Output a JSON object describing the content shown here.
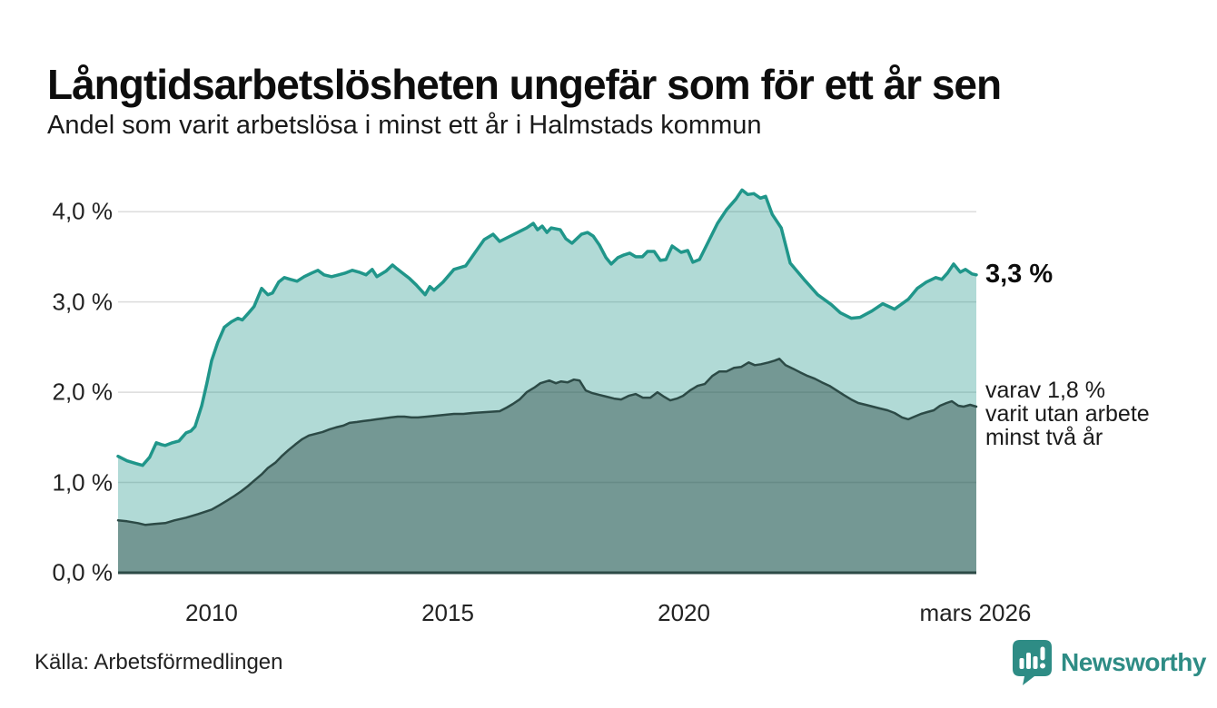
{
  "branding": {
    "name": "Newsworthy"
  },
  "colors": {
    "accent_teal": "#20968a",
    "fill_light": "rgba(32,150,138,0.35)",
    "dark_slate": "#2c4a46",
    "fill_dark": "rgba(44,74,70,0.46)",
    "gridline": "#dcdcdc",
    "baseline": "#2c4a46",
    "brand_teal": "#2e8c85",
    "text": "#1a1a1a"
  },
  "chart_data": {
    "type": "area",
    "title": "Långtidsarbetslösheten ungefär som för ett år sen",
    "subtitle": "Andel som varit arbetslösa i minst ett år i Halmstads kommun",
    "source": "Källa: Arbetsförmedlingen",
    "unit": "%",
    "legend": "none",
    "grid": "horizontal",
    "x_axis": {
      "range": [
        2008.02,
        2026.19
      ],
      "ticks": [
        {
          "label": "2010",
          "year": 2010
        },
        {
          "label": "2015",
          "year": 2015
        },
        {
          "label": "2020",
          "year": 2020
        },
        {
          "label": "mars 2026",
          "year": 2026.17
        }
      ]
    },
    "y_axis": {
      "range": [
        0,
        4.33
      ],
      "gridlines": [
        1,
        2,
        3,
        4
      ],
      "ticks": [
        {
          "label": "0,0 %",
          "value": 0
        },
        {
          "label": "1,0 %",
          "value": 1
        },
        {
          "label": "2,0 %",
          "value": 2
        },
        {
          "label": "3,0 %",
          "value": 3
        },
        {
          "label": "4,0 %",
          "value": 4
        }
      ]
    },
    "series": [
      {
        "name": "Arbetslösa minst ett år",
        "color": "#20968a",
        "fill": "rgba(32,150,138,0.35)",
        "line_width": 3.5,
        "end_value": 3.3,
        "end_label": "3,3 %",
        "points": [
          [
            2008.02,
            1.29
          ],
          [
            2008.21,
            1.24
          ],
          [
            2008.4,
            1.21
          ],
          [
            2008.54,
            1.19
          ],
          [
            2008.69,
            1.28
          ],
          [
            2008.83,
            1.44
          ],
          [
            2008.94,
            1.42
          ],
          [
            2009.02,
            1.41
          ],
          [
            2009.17,
            1.44
          ],
          [
            2009.31,
            1.46
          ],
          [
            2009.46,
            1.55
          ],
          [
            2009.56,
            1.57
          ],
          [
            2009.65,
            1.62
          ],
          [
            2009.79,
            1.85
          ],
          [
            2009.9,
            2.1
          ],
          [
            2010.0,
            2.35
          ],
          [
            2010.13,
            2.55
          ],
          [
            2010.27,
            2.72
          ],
          [
            2010.42,
            2.78
          ],
          [
            2010.56,
            2.82
          ],
          [
            2010.65,
            2.8
          ],
          [
            2010.77,
            2.87
          ],
          [
            2010.9,
            2.95
          ],
          [
            2011.06,
            3.15
          ],
          [
            2011.19,
            3.08
          ],
          [
            2011.29,
            3.1
          ],
          [
            2011.42,
            3.22
          ],
          [
            2011.54,
            3.27
          ],
          [
            2011.67,
            3.25
          ],
          [
            2011.81,
            3.23
          ],
          [
            2011.96,
            3.28
          ],
          [
            2012.12,
            3.32
          ],
          [
            2012.25,
            3.35
          ],
          [
            2012.38,
            3.3
          ],
          [
            2012.54,
            3.28
          ],
          [
            2012.69,
            3.3
          ],
          [
            2012.83,
            3.32
          ],
          [
            2012.98,
            3.35
          ],
          [
            2013.12,
            3.33
          ],
          [
            2013.27,
            3.3
          ],
          [
            2013.4,
            3.36
          ],
          [
            2013.5,
            3.28
          ],
          [
            2013.69,
            3.34
          ],
          [
            2013.83,
            3.41
          ],
          [
            2013.92,
            3.37
          ],
          [
            2014.04,
            3.32
          ],
          [
            2014.19,
            3.26
          ],
          [
            2014.33,
            3.19
          ],
          [
            2014.52,
            3.08
          ],
          [
            2014.62,
            3.17
          ],
          [
            2014.71,
            3.13
          ],
          [
            2014.9,
            3.22
          ],
          [
            2015.13,
            3.36
          ],
          [
            2015.38,
            3.4
          ],
          [
            2015.58,
            3.55
          ],
          [
            2015.77,
            3.69
          ],
          [
            2015.96,
            3.75
          ],
          [
            2016.1,
            3.67
          ],
          [
            2016.29,
            3.72
          ],
          [
            2016.48,
            3.77
          ],
          [
            2016.67,
            3.82
          ],
          [
            2016.81,
            3.87
          ],
          [
            2016.9,
            3.8
          ],
          [
            2017.0,
            3.84
          ],
          [
            2017.1,
            3.77
          ],
          [
            2017.19,
            3.82
          ],
          [
            2017.38,
            3.8
          ],
          [
            2017.5,
            3.7
          ],
          [
            2017.63,
            3.65
          ],
          [
            2017.83,
            3.75
          ],
          [
            2017.96,
            3.77
          ],
          [
            2018.08,
            3.73
          ],
          [
            2018.21,
            3.63
          ],
          [
            2018.35,
            3.49
          ],
          [
            2018.46,
            3.42
          ],
          [
            2018.6,
            3.49
          ],
          [
            2018.73,
            3.52
          ],
          [
            2018.85,
            3.54
          ],
          [
            2018.98,
            3.5
          ],
          [
            2019.12,
            3.5
          ],
          [
            2019.23,
            3.56
          ],
          [
            2019.37,
            3.56
          ],
          [
            2019.5,
            3.46
          ],
          [
            2019.62,
            3.47
          ],
          [
            2019.75,
            3.62
          ],
          [
            2019.94,
            3.55
          ],
          [
            2020.08,
            3.57
          ],
          [
            2020.19,
            3.44
          ],
          [
            2020.33,
            3.47
          ],
          [
            2020.52,
            3.67
          ],
          [
            2020.71,
            3.87
          ],
          [
            2020.9,
            4.02
          ],
          [
            2021.1,
            4.14
          ],
          [
            2021.23,
            4.24
          ],
          [
            2021.35,
            4.19
          ],
          [
            2021.48,
            4.2
          ],
          [
            2021.62,
            4.15
          ],
          [
            2021.73,
            4.17
          ],
          [
            2021.87,
            3.97
          ],
          [
            2022.06,
            3.82
          ],
          [
            2022.25,
            3.43
          ],
          [
            2022.54,
            3.25
          ],
          [
            2022.83,
            3.08
          ],
          [
            2023.12,
            2.97
          ],
          [
            2023.31,
            2.88
          ],
          [
            2023.54,
            2.82
          ],
          [
            2023.73,
            2.83
          ],
          [
            2023.98,
            2.9
          ],
          [
            2024.21,
            2.98
          ],
          [
            2024.46,
            2.92
          ],
          [
            2024.75,
            3.03
          ],
          [
            2024.94,
            3.15
          ],
          [
            2025.13,
            3.22
          ],
          [
            2025.33,
            3.27
          ],
          [
            2025.46,
            3.25
          ],
          [
            2025.58,
            3.32
          ],
          [
            2025.71,
            3.42
          ],
          [
            2025.85,
            3.33
          ],
          [
            2025.96,
            3.36
          ],
          [
            2026.1,
            3.31
          ],
          [
            2026.19,
            3.3
          ]
        ]
      },
      {
        "name": "Utan arbete minst två år",
        "color": "#2c4a46",
        "fill": "rgba(44,74,70,0.46)",
        "line_width": 2.5,
        "end_value": 1.8,
        "end_label_lines": [
          "varav 1,8 %",
          "varit utan arbete",
          "minst två år"
        ],
        "points": [
          [
            2008.02,
            0.58
          ],
          [
            2008.21,
            0.57
          ],
          [
            2008.44,
            0.55
          ],
          [
            2008.6,
            0.53
          ],
          [
            2008.79,
            0.54
          ],
          [
            2009.02,
            0.55
          ],
          [
            2009.21,
            0.58
          ],
          [
            2009.46,
            0.61
          ],
          [
            2009.71,
            0.65
          ],
          [
            2010.0,
            0.7
          ],
          [
            2010.17,
            0.75
          ],
          [
            2010.33,
            0.8
          ],
          [
            2010.48,
            0.85
          ],
          [
            2010.62,
            0.9
          ],
          [
            2010.77,
            0.96
          ],
          [
            2010.9,
            1.02
          ],
          [
            2011.06,
            1.09
          ],
          [
            2011.19,
            1.16
          ],
          [
            2011.35,
            1.22
          ],
          [
            2011.48,
            1.29
          ],
          [
            2011.63,
            1.36
          ],
          [
            2011.77,
            1.42
          ],
          [
            2011.92,
            1.48
          ],
          [
            2012.06,
            1.52
          ],
          [
            2012.21,
            1.54
          ],
          [
            2012.35,
            1.56
          ],
          [
            2012.5,
            1.59
          ],
          [
            2012.63,
            1.61
          ],
          [
            2012.79,
            1.63
          ],
          [
            2012.92,
            1.66
          ],
          [
            2013.08,
            1.67
          ],
          [
            2013.21,
            1.68
          ],
          [
            2013.37,
            1.69
          ],
          [
            2013.5,
            1.7
          ],
          [
            2013.65,
            1.71
          ],
          [
            2013.79,
            1.72
          ],
          [
            2013.94,
            1.73
          ],
          [
            2014.08,
            1.73
          ],
          [
            2014.23,
            1.72
          ],
          [
            2014.37,
            1.72
          ],
          [
            2014.56,
            1.73
          ],
          [
            2014.75,
            1.74
          ],
          [
            2014.94,
            1.75
          ],
          [
            2015.13,
            1.76
          ],
          [
            2015.33,
            1.76
          ],
          [
            2015.52,
            1.77
          ],
          [
            2015.81,
            1.78
          ],
          [
            2016.1,
            1.79
          ],
          [
            2016.25,
            1.83
          ],
          [
            2016.38,
            1.87
          ],
          [
            2016.52,
            1.92
          ],
          [
            2016.67,
            2.0
          ],
          [
            2016.83,
            2.05
          ],
          [
            2016.96,
            2.1
          ],
          [
            2017.15,
            2.13
          ],
          [
            2017.29,
            2.1
          ],
          [
            2017.4,
            2.12
          ],
          [
            2017.54,
            2.11
          ],
          [
            2017.67,
            2.14
          ],
          [
            2017.79,
            2.13
          ],
          [
            2017.92,
            2.02
          ],
          [
            2018.06,
            1.99
          ],
          [
            2018.21,
            1.97
          ],
          [
            2018.37,
            1.95
          ],
          [
            2018.52,
            1.93
          ],
          [
            2018.67,
            1.92
          ],
          [
            2018.83,
            1.96
          ],
          [
            2018.98,
            1.98
          ],
          [
            2019.13,
            1.94
          ],
          [
            2019.29,
            1.94
          ],
          [
            2019.44,
            2.0
          ],
          [
            2019.58,
            1.95
          ],
          [
            2019.71,
            1.91
          ],
          [
            2019.85,
            1.93
          ],
          [
            2019.98,
            1.96
          ],
          [
            2020.13,
            2.02
          ],
          [
            2020.29,
            2.07
          ],
          [
            2020.44,
            2.09
          ],
          [
            2020.6,
            2.18
          ],
          [
            2020.75,
            2.23
          ],
          [
            2020.9,
            2.23
          ],
          [
            2021.06,
            2.27
          ],
          [
            2021.21,
            2.28
          ],
          [
            2021.37,
            2.33
          ],
          [
            2021.5,
            2.3
          ],
          [
            2021.63,
            2.31
          ],
          [
            2021.79,
            2.33
          ],
          [
            2021.92,
            2.35
          ],
          [
            2022.02,
            2.37
          ],
          [
            2022.15,
            2.3
          ],
          [
            2022.31,
            2.26
          ],
          [
            2022.46,
            2.22
          ],
          [
            2022.62,
            2.18
          ],
          [
            2022.77,
            2.15
          ],
          [
            2022.92,
            2.11
          ],
          [
            2023.08,
            2.07
          ],
          [
            2023.23,
            2.02
          ],
          [
            2023.38,
            1.97
          ],
          [
            2023.54,
            1.92
          ],
          [
            2023.69,
            1.88
          ],
          [
            2023.85,
            1.86
          ],
          [
            2024.0,
            1.84
          ],
          [
            2024.15,
            1.82
          ],
          [
            2024.31,
            1.8
          ],
          [
            2024.46,
            1.77
          ],
          [
            2024.62,
            1.72
          ],
          [
            2024.75,
            1.7
          ],
          [
            2024.88,
            1.73
          ],
          [
            2025.02,
            1.76
          ],
          [
            2025.15,
            1.78
          ],
          [
            2025.29,
            1.8
          ],
          [
            2025.42,
            1.85
          ],
          [
            2025.56,
            1.88
          ],
          [
            2025.67,
            1.9
          ],
          [
            2025.81,
            1.85
          ],
          [
            2025.92,
            1.84
          ],
          [
            2026.06,
            1.86
          ],
          [
            2026.19,
            1.84
          ]
        ]
      }
    ]
  }
}
